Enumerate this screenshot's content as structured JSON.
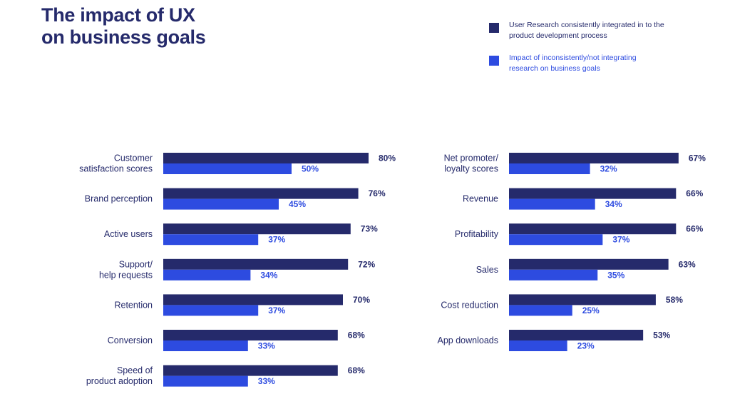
{
  "title_lines": [
    "The impact of UX",
    "on business goals"
  ],
  "legend": [
    {
      "text": "User Research consistently integrated in to the product development process",
      "color": "#252A6B"
    },
    {
      "text": "Impact of inconsistently/not integrating research on business goals",
      "color": "#2D4BE0"
    }
  ],
  "colors": {
    "title": "#252A6B",
    "label": "#252A6B",
    "series_integrated": "#252A6B",
    "series_not_integrated": "#2D4BE0"
  },
  "chart_data": [
    {
      "type": "bar",
      "orientation": "horizontal",
      "categories": [
        "Customer satisfaction scores",
        "Brand perception",
        "Active users",
        "Support/ help requests",
        "Retention",
        "Conversion",
        "Speed of product adoption"
      ],
      "category_lines": [
        [
          "Customer",
          "satisfaction scores"
        ],
        [
          "Brand perception"
        ],
        [
          "Active users"
        ],
        [
          "Support/",
          "help requests"
        ],
        [
          "Retention"
        ],
        [
          "Conversion"
        ],
        [
          "Speed of",
          "product adoption"
        ]
      ],
      "series": [
        {
          "name": "User Research consistently integrated in to the product development process",
          "values": [
            80,
            76,
            73,
            72,
            70,
            68,
            68
          ],
          "color": "#252A6B"
        },
        {
          "name": "Impact of inconsistently/not integrating research on business goals",
          "values": [
            50,
            45,
            37,
            34,
            37,
            33,
            33
          ],
          "color": "#2D4BE0"
        }
      ],
      "unit": "%",
      "xlim": [
        0,
        100
      ]
    },
    {
      "type": "bar",
      "orientation": "horizontal",
      "categories": [
        "Net promoter/ loyalty scores",
        "Revenue",
        "Profitability",
        "Sales",
        "Cost reduction",
        "App downloads"
      ],
      "category_lines": [
        [
          "Net promoter/",
          "loyalty scores"
        ],
        [
          "Revenue"
        ],
        [
          "Profitability"
        ],
        [
          "Sales"
        ],
        [
          "Cost reduction"
        ],
        [
          "App downloads"
        ]
      ],
      "series": [
        {
          "name": "User Research consistently integrated in to the product development process",
          "values": [
            67,
            66,
            66,
            63,
            58,
            53
          ],
          "color": "#252A6B"
        },
        {
          "name": "Impact of inconsistently/not integrating research on business goals",
          "values": [
            32,
            34,
            37,
            35,
            25,
            23
          ],
          "color": "#2D4BE0"
        }
      ],
      "unit": "%",
      "xlim": [
        0,
        100
      ]
    }
  ]
}
